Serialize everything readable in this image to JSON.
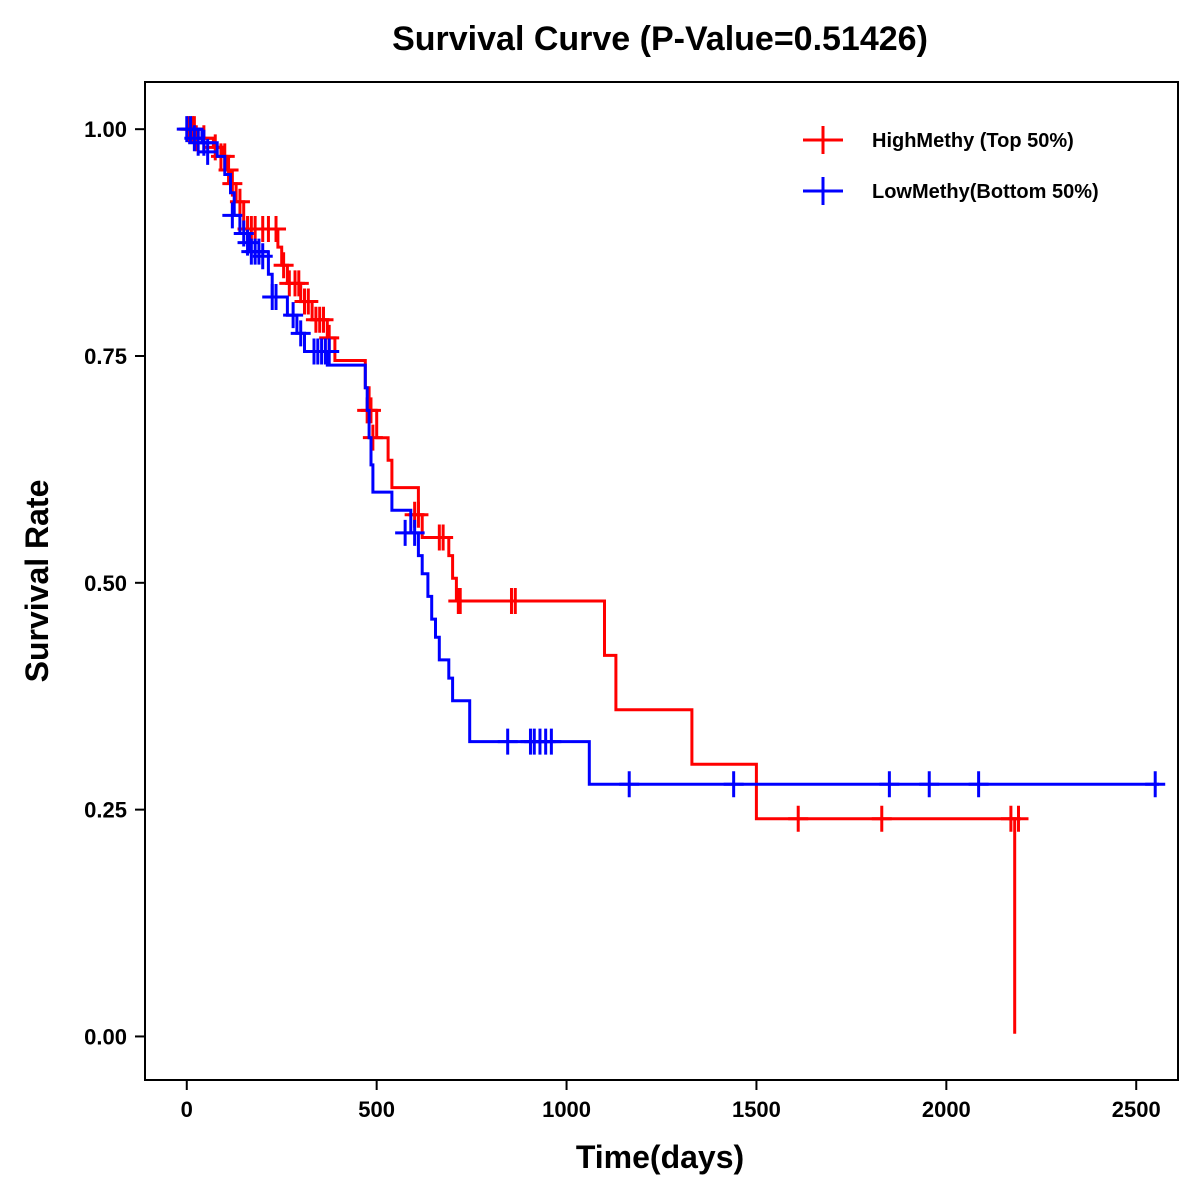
{
  "chart_data": {
    "type": "line",
    "subtype": "kaplan-meier",
    "title": "Survival Curve (P-Value=0.51426)",
    "xlabel": "Time(days)",
    "ylabel": "Survival Rate",
    "xlim": [
      -110,
      2610
    ],
    "ylim": [
      -0.048,
      1.052
    ],
    "xticks": [
      0,
      500,
      1000,
      1500,
      2000,
      2500
    ],
    "xtick_labels": [
      "0",
      "500",
      "1000",
      "1500",
      "2000",
      "2500"
    ],
    "yticks": [
      0,
      0.25,
      0.5,
      0.75,
      1.0
    ],
    "ytick_labels": [
      "0.00",
      "0.25",
      "0.50",
      "0.75",
      "1.00"
    ],
    "grid": false,
    "legend_position": "top-right",
    "series": [
      {
        "name": "HighMethy (Top 50%)",
        "color": "#ff0000",
        "steps": [
          [
            0,
            1.0
          ],
          [
            30,
            0.99
          ],
          [
            70,
            0.98
          ],
          [
            95,
            0.97
          ],
          [
            105,
            0.955
          ],
          [
            115,
            0.94
          ],
          [
            130,
            0.92
          ],
          [
            150,
            0.89
          ],
          [
            240,
            0.87
          ],
          [
            250,
            0.85
          ],
          [
            265,
            0.83
          ],
          [
            300,
            0.81
          ],
          [
            330,
            0.79
          ],
          [
            370,
            0.77
          ],
          [
            390,
            0.745
          ],
          [
            470,
            0.715
          ],
          [
            480,
            0.69
          ],
          [
            500,
            0.66
          ],
          [
            530,
            0.635
          ],
          [
            540,
            0.605
          ],
          [
            610,
            0.575
          ],
          [
            620,
            0.55
          ],
          [
            690,
            0.53
          ],
          [
            700,
            0.505
          ],
          [
            710,
            0.48
          ],
          [
            1100,
            0.42
          ],
          [
            1130,
            0.36
          ],
          [
            1330,
            0.3
          ],
          [
            1500,
            0.24
          ],
          [
            2180,
            0.003
          ]
        ],
        "end_x": 2180,
        "censored": [
          [
            5,
            1.0
          ],
          [
            15,
            1.0
          ],
          [
            20,
            1.0
          ],
          [
            25,
            0.99
          ],
          [
            45,
            0.99
          ],
          [
            75,
            0.98
          ],
          [
            90,
            0.97
          ],
          [
            100,
            0.97
          ],
          [
            110,
            0.955
          ],
          [
            120,
            0.94
          ],
          [
            140,
            0.92
          ],
          [
            160,
            0.89
          ],
          [
            170,
            0.89
          ],
          [
            180,
            0.89
          ],
          [
            200,
            0.89
          ],
          [
            215,
            0.89
          ],
          [
            235,
            0.89
          ],
          [
            255,
            0.85
          ],
          [
            270,
            0.83
          ],
          [
            285,
            0.83
          ],
          [
            295,
            0.83
          ],
          [
            310,
            0.81
          ],
          [
            320,
            0.81
          ],
          [
            340,
            0.79
          ],
          [
            350,
            0.79
          ],
          [
            360,
            0.79
          ],
          [
            375,
            0.77
          ],
          [
            475,
            0.69
          ],
          [
            485,
            0.69
          ],
          [
            490,
            0.66
          ],
          [
            600,
            0.575
          ],
          [
            610,
            0.575
          ],
          [
            665,
            0.55
          ],
          [
            675,
            0.55
          ],
          [
            715,
            0.48
          ],
          [
            720,
            0.48
          ],
          [
            855,
            0.48
          ],
          [
            865,
            0.48
          ],
          [
            1610,
            0.24
          ],
          [
            1830,
            0.24
          ],
          [
            2170,
            0.24
          ],
          [
            2190,
            0.24
          ]
        ]
      },
      {
        "name": "LowMethy(Bottom 50%)",
        "color": "#0000ff",
        "steps": [
          [
            0,
            1.0
          ],
          [
            40,
            0.985
          ],
          [
            80,
            0.97
          ],
          [
            100,
            0.95
          ],
          [
            115,
            0.93
          ],
          [
            125,
            0.905
          ],
          [
            140,
            0.885
          ],
          [
            165,
            0.865
          ],
          [
            215,
            0.84
          ],
          [
            225,
            0.815
          ],
          [
            265,
            0.795
          ],
          [
            290,
            0.775
          ],
          [
            310,
            0.755
          ],
          [
            370,
            0.74
          ],
          [
            470,
            0.715
          ],
          [
            475,
            0.69
          ],
          [
            480,
            0.66
          ],
          [
            485,
            0.63
          ],
          [
            490,
            0.6
          ],
          [
            540,
            0.58
          ],
          [
            590,
            0.555
          ],
          [
            610,
            0.53
          ],
          [
            620,
            0.51
          ],
          [
            635,
            0.485
          ],
          [
            645,
            0.46
          ],
          [
            655,
            0.44
          ],
          [
            665,
            0.415
          ],
          [
            690,
            0.395
          ],
          [
            700,
            0.37
          ],
          [
            745,
            0.325
          ],
          [
            1060,
            0.278
          ]
        ],
        "end_x": 2560,
        "censored": [
          [
            0,
            1.0
          ],
          [
            10,
            1.0
          ],
          [
            20,
            0.99
          ],
          [
            30,
            0.985
          ],
          [
            45,
            0.985
          ],
          [
            55,
            0.975
          ],
          [
            120,
            0.905
          ],
          [
            150,
            0.885
          ],
          [
            160,
            0.875
          ],
          [
            170,
            0.865
          ],
          [
            180,
            0.865
          ],
          [
            190,
            0.865
          ],
          [
            200,
            0.86
          ],
          [
            225,
            0.815
          ],
          [
            235,
            0.815
          ],
          [
            280,
            0.795
          ],
          [
            300,
            0.775
          ],
          [
            335,
            0.755
          ],
          [
            345,
            0.755
          ],
          [
            355,
            0.755
          ],
          [
            365,
            0.755
          ],
          [
            375,
            0.755
          ],
          [
            575,
            0.555
          ],
          [
            600,
            0.555
          ],
          [
            845,
            0.325
          ],
          [
            905,
            0.325
          ],
          [
            915,
            0.325
          ],
          [
            930,
            0.325
          ],
          [
            945,
            0.325
          ],
          [
            960,
            0.325
          ],
          [
            1165,
            0.278
          ],
          [
            1440,
            0.278
          ],
          [
            1850,
            0.278
          ],
          [
            1955,
            0.278
          ],
          [
            2085,
            0.278
          ],
          [
            2550,
            0.278
          ]
        ]
      }
    ]
  }
}
